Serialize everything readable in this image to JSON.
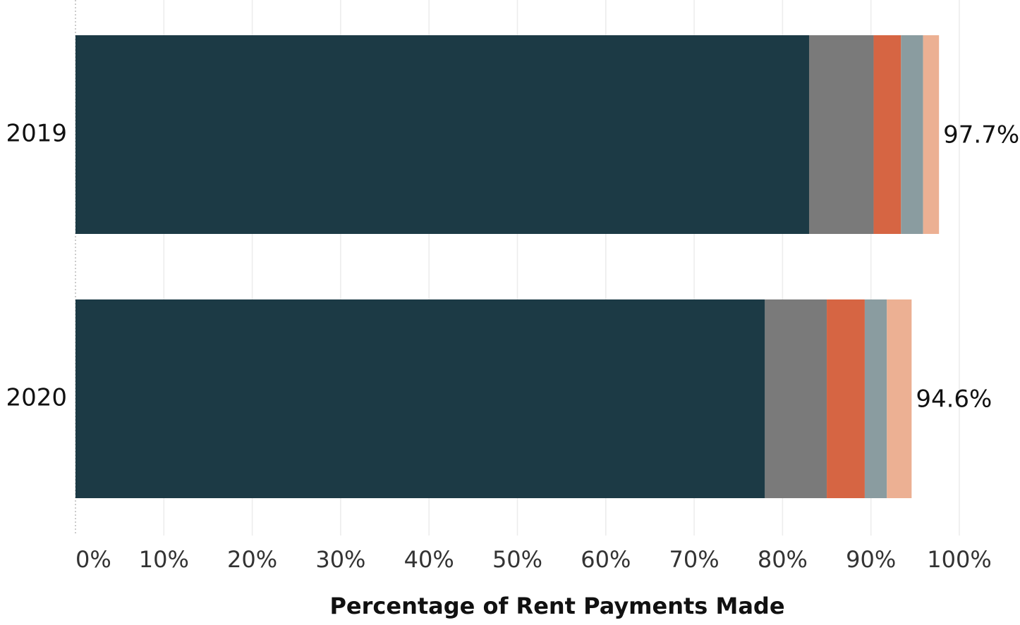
{
  "chart_data": {
    "type": "stacked_barh",
    "categories": [
      "2019",
      "2020"
    ],
    "series": [
      {
        "color": "#1c3a45",
        "values": [
          83.0,
          78.0
        ]
      },
      {
        "color": "#7a7a7a",
        "values": [
          7.3,
          7.0
        ]
      },
      {
        "color": "#d66543",
        "values": [
          3.1,
          4.3
        ]
      },
      {
        "color": "#8a9ca0",
        "values": [
          2.5,
          2.5
        ]
      },
      {
        "color": "#ecb093",
        "values": [
          1.8,
          2.8
        ]
      }
    ],
    "totals": [
      97.7,
      94.6
    ],
    "total_labels": [
      "97.7%",
      "94.6%"
    ],
    "xlim": [
      0,
      100
    ],
    "xticks": [
      {
        "value": 0,
        "label": "0%"
      },
      {
        "value": 10,
        "label": "10%"
      },
      {
        "value": 20,
        "label": "20%"
      },
      {
        "value": 30,
        "label": "30%"
      },
      {
        "value": 40,
        "label": "40%"
      },
      {
        "value": 50,
        "label": "50%"
      },
      {
        "value": 60,
        "label": "60%"
      },
      {
        "value": 70,
        "label": "70%"
      },
      {
        "value": 80,
        "label": "80%"
      },
      {
        "value": 90,
        "label": "90%"
      },
      {
        "value": 100,
        "label": "100%"
      }
    ],
    "xlabel": "Percentage of Rent Payments Made",
    "grid": true
  }
}
